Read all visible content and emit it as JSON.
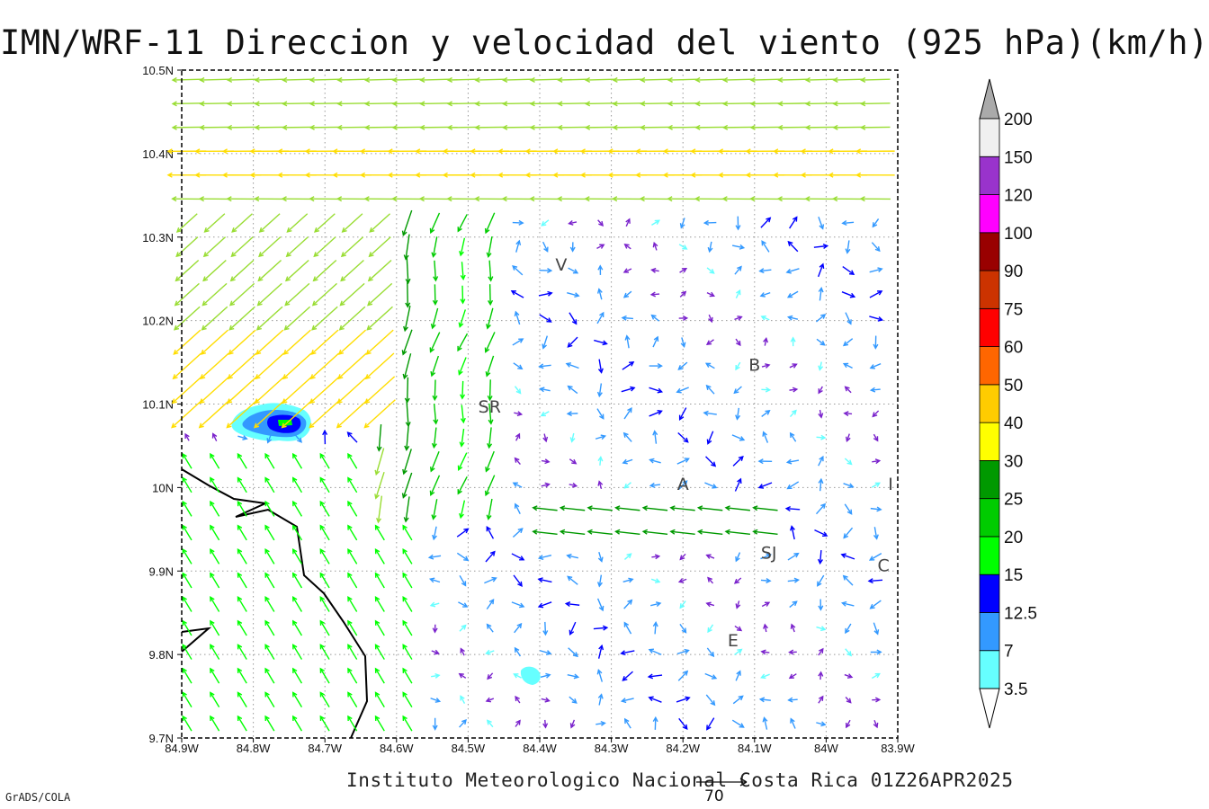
{
  "title": "IMN/WRF-11 Direccion y velocidad del viento (925 hPa)(km/h)",
  "credit": "Instituto Meteorologico Nacional Costa Rica 01Z26APR2025",
  "brand": "GrADS/COLA",
  "reference_vector": {
    "label": "70",
    "speed_kmh": 70
  },
  "map": {
    "lon_range": [
      -84.9,
      -83.9
    ],
    "lat_range": [
      9.7,
      10.5
    ],
    "x_ticks": [
      "84.9W",
      "84.8W",
      "84.7W",
      "84.6W",
      "84.5W",
      "84.4W",
      "84.3W",
      "84.2W",
      "84.1W",
      "84W",
      "83.9W"
    ],
    "y_ticks": [
      "9.7N",
      "9.8N",
      "9.9N",
      "10N",
      "10.1N",
      "10.2N",
      "10.3N",
      "10.4N",
      "10.5N"
    ],
    "grid": "dotted",
    "places": [
      {
        "label": "V",
        "lon": -84.37,
        "lat": 10.26
      },
      {
        "label": "SR",
        "lon": -84.47,
        "lat": 10.09
      },
      {
        "label": "B",
        "lon": -84.1,
        "lat": 10.14
      },
      {
        "label": "A",
        "lon": -84.2,
        "lat": 9.997
      },
      {
        "label": "I",
        "lon": -83.91,
        "lat": 9.997
      },
      {
        "label": "SJ",
        "lon": -84.08,
        "lat": 9.915
      },
      {
        "label": "C",
        "lon": -83.92,
        "lat": 9.9
      },
      {
        "label": "E",
        "lon": -84.13,
        "lat": 9.81
      }
    ]
  },
  "colorbar": {
    "labels": [
      "3.5",
      "7",
      "12.5",
      "15",
      "20",
      "25",
      "30",
      "40",
      "50",
      "60",
      "75",
      "90",
      "100",
      "120",
      "150",
      "200"
    ],
    "colors": [
      "#66ffff",
      "#3399ff",
      "#0000ff",
      "#00ff00",
      "#00cc00",
      "#009900",
      "#ffff00",
      "#ffcc00",
      "#ff6600",
      "#ff0000",
      "#cc3300",
      "#990000",
      "#ff00ff",
      "#9933cc",
      "#f0f0f0"
    ],
    "over_color": "#aaaaaa",
    "under_color": "#ffffff"
  }
}
